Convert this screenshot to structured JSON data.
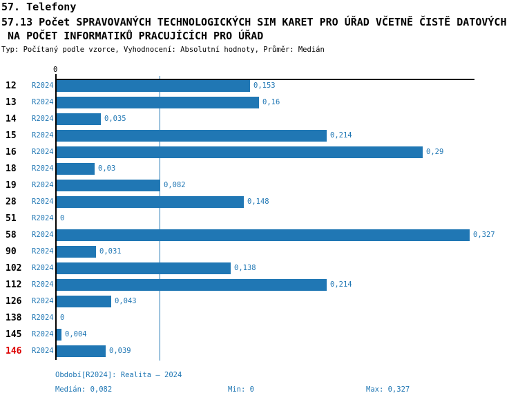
{
  "header": {
    "title": "57. Telefony",
    "subtitle_line1": "57.13 Počet SPRAVOVANÝCH TECHNOLOGICKÝCH SIM KARET PRO ÚŘAD VČETNĚ ČISTĚ DATOVÝCH",
    "subtitle_line2": " NA POČET INFORMATIKŮ PRACUJÍCÍCH PRO ÚŘAD",
    "meta": "Typ: Počítaný podle vzorce, Vyhodnocení: Absolutní hodnoty, Průměr: Medián"
  },
  "chart": {
    "axis_zero_label": "0",
    "colors": {
      "bar_blue": "#2077b4",
      "label_blue": "#2077b4",
      "highlight_red": "#dd0000",
      "axis_black": "#000000"
    },
    "rows": [
      {
        "id": "12",
        "period": "R2024",
        "value": 0.153,
        "label": "0,153",
        "highlight": false
      },
      {
        "id": "13",
        "period": "R2024",
        "value": 0.16,
        "label": "0,16",
        "highlight": false
      },
      {
        "id": "14",
        "period": "R2024",
        "value": 0.035,
        "label": "0,035",
        "highlight": false
      },
      {
        "id": "15",
        "period": "R2024",
        "value": 0.214,
        "label": "0,214",
        "highlight": false
      },
      {
        "id": "16",
        "period": "R2024",
        "value": 0.29,
        "label": "0,29",
        "highlight": false
      },
      {
        "id": "18",
        "period": "R2024",
        "value": 0.03,
        "label": "0,03",
        "highlight": false
      },
      {
        "id": "19",
        "period": "R2024",
        "value": 0.082,
        "label": "0,082",
        "highlight": false
      },
      {
        "id": "28",
        "period": "R2024",
        "value": 0.148,
        "label": "0,148",
        "highlight": false
      },
      {
        "id": "51",
        "period": "R2024",
        "value": 0,
        "label": "0",
        "highlight": false
      },
      {
        "id": "58",
        "period": "R2024",
        "value": 0.327,
        "label": "0,327",
        "highlight": false
      },
      {
        "id": "90",
        "period": "R2024",
        "value": 0.031,
        "label": "0,031",
        "highlight": false
      },
      {
        "id": "102",
        "period": "R2024",
        "value": 0.138,
        "label": "0,138",
        "highlight": false
      },
      {
        "id": "112",
        "period": "R2024",
        "value": 0.214,
        "label": "0,214",
        "highlight": false
      },
      {
        "id": "126",
        "period": "R2024",
        "value": 0.043,
        "label": "0,043",
        "highlight": false
      },
      {
        "id": "138",
        "period": "R2024",
        "value": 0,
        "label": "0",
        "highlight": false
      },
      {
        "id": "145",
        "period": "R2024",
        "value": 0.004,
        "label": "0,004",
        "highlight": false
      },
      {
        "id": "146",
        "period": "R2024",
        "value": 0.039,
        "label": "0,039",
        "highlight": true
      }
    ]
  },
  "chart_data": {
    "type": "bar",
    "orientation": "horizontal",
    "title": "57.13 Počet SPRAVOVANÝCH TECHNOLOGICKÝCH SIM KARET PRO ÚŘAD VČETNĚ ČISTĚ DATOVÝCH NA POČET INFORMATIKŮ PRACUJÍCÍCH PRO ÚŘAD",
    "categories": [
      "12",
      "13",
      "14",
      "15",
      "16",
      "18",
      "19",
      "28",
      "51",
      "58",
      "90",
      "102",
      "112",
      "126",
      "138",
      "145",
      "146"
    ],
    "series": [
      {
        "name": "R2024",
        "values": [
          0.153,
          0.16,
          0.035,
          0.214,
          0.29,
          0.03,
          0.082,
          0.148,
          0,
          0.327,
          0.031,
          0.138,
          0.214,
          0.043,
          0,
          0.004,
          0.039
        ]
      }
    ],
    "value_labels": [
      "0,153",
      "0,16",
      "0,035",
      "0,214",
      "0,29",
      "0,03",
      "0,082",
      "0,148",
      "0",
      "0,327",
      "0,031",
      "0,138",
      "0,214",
      "0,043",
      "0",
      "0,004",
      "0,039"
    ],
    "xlim": [
      0,
      0.331
    ],
    "x_tick_labels": [
      "0"
    ],
    "median_line_value": 0.082,
    "grid": false,
    "legend": "none",
    "stats": {
      "median": 0.082,
      "min": 0,
      "max": 0.327
    }
  },
  "footer": {
    "period": "Období[R2024]: Realita – 2024",
    "median": "Medián: 0,082",
    "min": "Min: 0",
    "max": "Max: 0,327"
  }
}
